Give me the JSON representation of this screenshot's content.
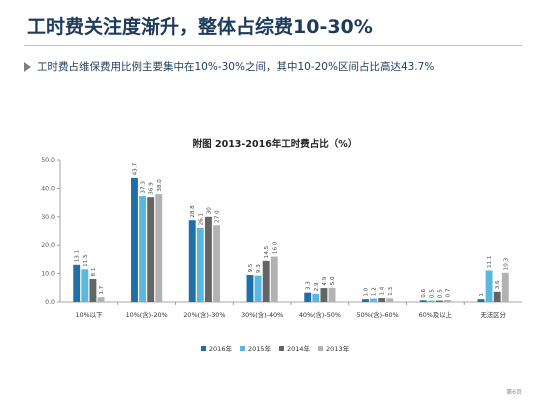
{
  "header": {
    "title": "工时费关注度渐升，整体占综费10-30%",
    "subtitle": "工时费占维保费用比例主要集中在10%-30%之间，其中10-20%区间占比高达43.7%"
  },
  "footer": {
    "page_number": "第6页"
  },
  "colors": {
    "title": "#1f3b5c",
    "marker": "#7f7f7f"
  },
  "chart_data": {
    "type": "bar",
    "title": "附图  2013-2016年工时费占比（%）",
    "xlabel": "",
    "ylabel": "",
    "ylim": [
      0,
      50
    ],
    "yticks": [
      "0.0",
      "10.0",
      "20.0",
      "30.0",
      "40.0",
      "50.0"
    ],
    "grid": false,
    "legend_position": "bottom",
    "categories": [
      "10%以下",
      "10%(含)-20%",
      "20%(含)-30%",
      "30%(含)-40%",
      "40%(含)-50%",
      "50%(含)-60%",
      "60%及以上",
      "无法区分"
    ],
    "series": [
      {
        "name": "2016年",
        "color": "#1f6fa8",
        "values": [
          13.1,
          43.7,
          28.8,
          9.5,
          3.3,
          1.0,
          0.6,
          1
        ],
        "labels": [
          "13.1",
          "43.7",
          "28.8",
          "9.5",
          "3.3",
          "1.0",
          "0.6",
          "1"
        ]
      },
      {
        "name": "2015年",
        "color": "#5ab8e0",
        "values": [
          11.5,
          37.3,
          26.1,
          9.3,
          2.9,
          1.2,
          0.5,
          11.1
        ],
        "labels": [
          "11.5",
          "37.3",
          "26.1",
          "9.3",
          "2.9",
          "1.2",
          "0.5",
          "11.1"
        ]
      },
      {
        "name": "2014年",
        "color": "#636566",
        "values": [
          8.1,
          36.9,
          30,
          14.5,
          4.9,
          1.4,
          0.5,
          3.6
        ],
        "labels": [
          "8.1",
          "36.9",
          "30",
          "14.5",
          "4.9",
          "1.4",
          "0.5",
          "3.6"
        ]
      },
      {
        "name": "2013年",
        "color": "#b2b2b2",
        "values": [
          1.7,
          38.0,
          27.0,
          16.0,
          5.0,
          1.3,
          0.7,
          10.3
        ],
        "labels": [
          "1.7",
          "38.0",
          "27.0",
          "16.0",
          "5.0",
          "1.3",
          "0.7",
          "10.3"
        ]
      }
    ]
  }
}
